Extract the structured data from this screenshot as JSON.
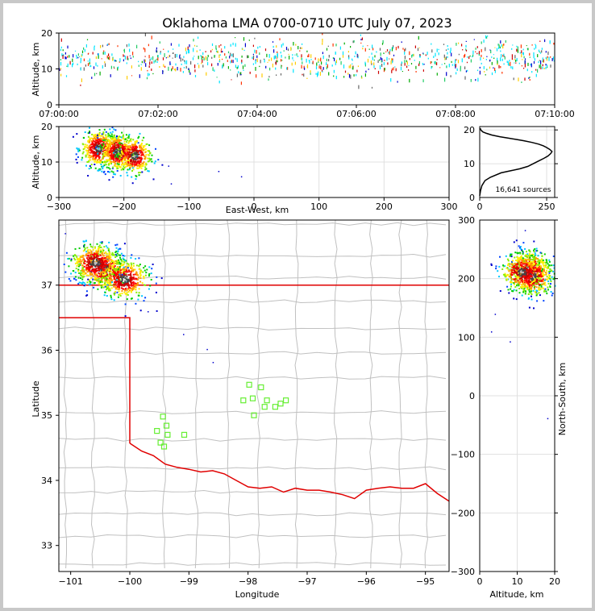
{
  "title": "Oklahoma LMA 0700-0710 UTC July 07, 2023",
  "colors": {
    "state_border": "#e00000",
    "county": "#c0c0c0",
    "stations": "#66ee33",
    "hist_line": "#000000"
  },
  "chart_data": [
    {
      "id": "time_height",
      "type": "heatmap",
      "ylabel": "Altitude, km",
      "xlabel": "",
      "xlim": [
        "07:00:00",
        "07:10:00"
      ],
      "x_ticks": [
        "07:00:00",
        "07:02:00",
        "07:04:00",
        "07:06:00",
        "07:08:00",
        "07:10:00"
      ],
      "ylim": [
        0,
        20
      ],
      "y_ticks": [
        0,
        10,
        20
      ],
      "density": "continuous lightning sources between ~5 and 20 km across the whole period, densest at 10–16 km"
    },
    {
      "id": "ew_altitude",
      "type": "heatmap",
      "xlabel": "East-West, km",
      "ylabel": "Altitude, km",
      "xlim": [
        -300,
        300
      ],
      "x_ticks": [
        -300,
        -200,
        -100,
        0,
        100,
        200,
        300
      ],
      "ylim": [
        0,
        20
      ],
      "y_ticks": [
        0,
        10,
        20
      ],
      "clusters": [
        {
          "x": -240,
          "alt": 14,
          "weight": 1.0
        },
        {
          "x": -210,
          "alt": 13,
          "weight": 1.0
        },
        {
          "x": -185,
          "alt": 12,
          "weight": 0.7
        }
      ]
    },
    {
      "id": "altitude_histogram",
      "type": "line",
      "xlabel": "",
      "ylabel": "",
      "xlim": [
        0,
        280
      ],
      "x_ticks": [
        0,
        250
      ],
      "ylim": [
        0,
        21
      ],
      "y_ticks": [
        0,
        10,
        20
      ],
      "annotation": "16,641 sources",
      "x": [
        0,
        3,
        8,
        20,
        40,
        80,
        120,
        150,
        180,
        200,
        220,
        240,
        255,
        265,
        270,
        262,
        250,
        238,
        220,
        195,
        165,
        135,
        105,
        75,
        45,
        25,
        12,
        6,
        3,
        2
      ],
      "y": [
        0.5,
        2,
        3.5,
        5,
        6,
        7.3,
        8,
        8.5,
        9.2,
        10,
        10.8,
        11.6,
        12.3,
        13,
        13.6,
        14.2,
        14.8,
        15.3,
        15.8,
        16.3,
        16.8,
        17.2,
        17.6,
        18,
        18.5,
        19,
        19.4,
        19.8,
        20.2,
        20.5
      ]
    },
    {
      "id": "plan_view",
      "type": "scatter",
      "xlabel": "Longitude",
      "ylabel": "Latitude",
      "xlim": [
        -101.2,
        -94.6
      ],
      "x_ticks": [
        -101,
        -100,
        -99,
        -98,
        -97,
        -96,
        -95
      ],
      "ylim": [
        32.6,
        38.0
      ],
      "y_ticks": [
        33,
        34,
        35,
        36,
        37
      ],
      "source_clusters": [
        {
          "lon": -100.45,
          "lat": 37.25
        },
        {
          "lon": -100.1,
          "lat": 37.1
        },
        {
          "lon": -100.6,
          "lat": 37.35
        }
      ],
      "stations": [
        {
          "lon": -97.98,
          "lat": 35.47
        },
        {
          "lon": -97.78,
          "lat": 35.43
        },
        {
          "lon": -97.92,
          "lat": 35.26
        },
        {
          "lon": -98.08,
          "lat": 35.23
        },
        {
          "lon": -97.68,
          "lat": 35.23
        },
        {
          "lon": -97.36,
          "lat": 35.23
        },
        {
          "lon": -97.45,
          "lat": 35.18
        },
        {
          "lon": -97.54,
          "lat": 35.13
        },
        {
          "lon": -97.72,
          "lat": 35.13
        },
        {
          "lon": -97.9,
          "lat": 35.0
        },
        {
          "lon": -99.44,
          "lat": 34.98
        },
        {
          "lon": -99.38,
          "lat": 34.84
        },
        {
          "lon": -99.54,
          "lat": 34.76
        },
        {
          "lon": -99.36,
          "lat": 34.7
        },
        {
          "lon": -99.08,
          "lat": 34.7
        },
        {
          "lon": -99.48,
          "lat": 34.58
        },
        {
          "lon": -99.42,
          "lat": 34.52
        }
      ]
    },
    {
      "id": "ns_altitude",
      "type": "heatmap",
      "xlabel": "Altitude, km",
      "ylabel": "North-South, km",
      "xlim": [
        0,
        20
      ],
      "x_ticks": [
        0,
        10,
        20
      ],
      "ylim": [
        -300,
        300
      ],
      "y_ticks": [
        -300,
        -200,
        -100,
        0,
        100,
        200,
        300
      ],
      "clusters": [
        {
          "alt": 13,
          "ns": 218,
          "weight": 1.0
        },
        {
          "alt": 14,
          "ns": 205,
          "weight": 1.0
        },
        {
          "alt": 11,
          "ns": 212,
          "weight": 0.8
        }
      ]
    }
  ]
}
